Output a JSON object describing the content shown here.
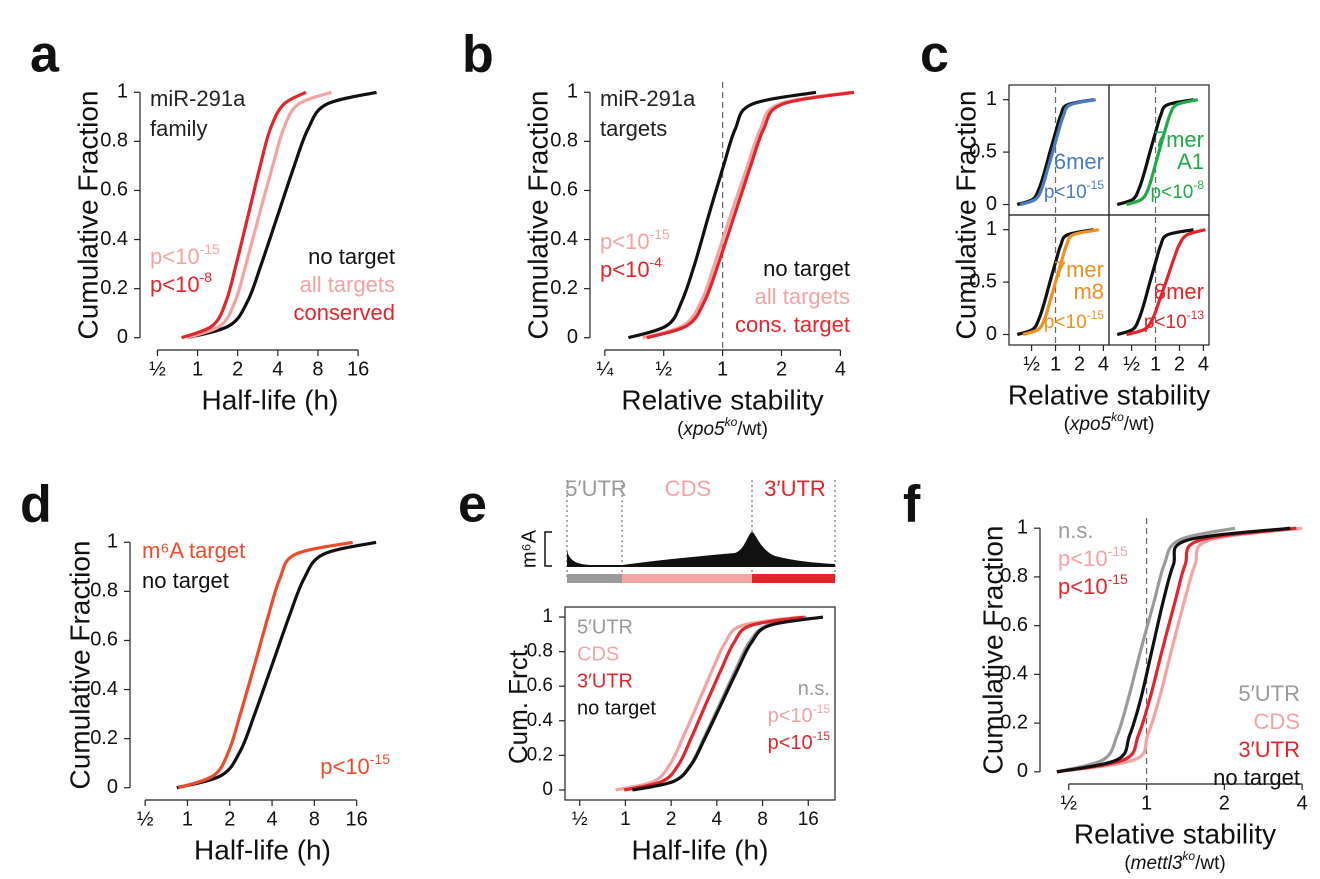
{
  "chart_data": [
    {
      "type": "line",
      "panel": "a",
      "xscale": "log",
      "ylabel": "Cumulative Fraction",
      "xlabel": "Half-life (h)",
      "inset_title": [
        "miR-291a",
        "family"
      ],
      "xlim": [
        0.37,
        33
      ],
      "ylim": [
        -0.05,
        1.05
      ],
      "xticks": [
        {
          "value": 0.5,
          "label": "½"
        },
        1,
        2,
        4,
        8,
        16
      ],
      "yticks": [
        0,
        0.2,
        0.4,
        0.6,
        0.8,
        1
      ],
      "pvalues": [
        {
          "base": "p<10",
          "exp": "-15",
          "color": "#f4a3a3"
        },
        {
          "base": "p<10",
          "exp": "-8",
          "color": "#e3242b"
        }
      ],
      "series": [
        {
          "name": "no target",
          "color": "#111111",
          "x": [
            0.84,
            1.74,
            2.38,
            3.01,
            4,
            5.31,
            6.73,
            9.19,
            22
          ],
          "values": [
            0,
            0.05,
            0.15,
            0.3,
            0.5,
            0.7,
            0.85,
            0.95,
            1
          ]
        },
        {
          "name": "all targets",
          "color": "#f4a3a3",
          "x": [
            0.84,
            1.49,
            1.92,
            2.31,
            2.9,
            3.66,
            4.41,
            5.66,
            10.1
          ],
          "values": [
            0,
            0.05,
            0.15,
            0.3,
            0.5,
            0.7,
            0.85,
            0.95,
            1
          ]
        },
        {
          "name": "conserved",
          "color": "#e3242b",
          "x": [
            0.76,
            1.3,
            1.64,
            1.95,
            2.4,
            2.95,
            3.51,
            4.41,
            6.5
          ],
          "values": [
            0,
            0.05,
            0.15,
            0.3,
            0.5,
            0.7,
            0.85,
            0.95,
            1
          ]
        }
      ]
    },
    {
      "type": "line",
      "panel": "b",
      "xscale": "log",
      "ylabel": "Cumulative Fraction",
      "xlabel": "Relative stability",
      "xlabel_note": {
        "open": "(",
        "gene": "xpo5",
        "sup": "ko",
        "close": "/wt)"
      },
      "inset_title": [
        "miR-291a",
        "targets"
      ],
      "xlim": [
        0.21,
        4.75
      ],
      "ylim": [
        -0.05,
        1.05
      ],
      "vline": 1,
      "xticks": [
        {
          "value": 0.25,
          "label": "¼"
        },
        {
          "value": 0.5,
          "label": "½"
        },
        1,
        2,
        4
      ],
      "yticks": [
        0,
        0.2,
        0.4,
        0.6,
        0.8,
        1
      ],
      "pvalues": [
        {
          "base": "p<10",
          "exp": "-15",
          "color": "#f4a3a3"
        },
        {
          "base": "p<10",
          "exp": "-4",
          "color": "#e3242b"
        }
      ],
      "series": [
        {
          "name": "no target",
          "color": "#111111",
          "x": [
            0.33,
            0.52,
            0.62,
            0.72,
            0.85,
            1.01,
            1.16,
            1.4,
            3.0
          ],
          "values": [
            0,
            0.05,
            0.15,
            0.3,
            0.5,
            0.7,
            0.85,
            0.95,
            1
          ]
        },
        {
          "name": "all targets",
          "color": "#f4a3a3",
          "x": [
            0.39,
            0.63,
            0.78,
            0.91,
            1.1,
            1.34,
            1.56,
            1.92,
            4.5
          ],
          "values": [
            0,
            0.05,
            0.15,
            0.3,
            0.5,
            0.7,
            0.85,
            0.95,
            1
          ]
        },
        {
          "name": "cons. target",
          "color": "#e3242b",
          "x": [
            0.41,
            0.66,
            0.81,
            0.95,
            1.15,
            1.39,
            1.62,
            2.0,
            4.7
          ],
          "values": [
            0,
            0.05,
            0.15,
            0.3,
            0.5,
            0.7,
            0.85,
            0.95,
            1
          ]
        }
      ]
    },
    {
      "type": "line",
      "panel": "c",
      "xscale": "log",
      "ylabel": "Cumulative Fraction",
      "xlabel": "Relative stability",
      "xlabel_note": {
        "open": "(",
        "gene": "xpo5",
        "sup": "ko",
        "close": "/wt)"
      },
      "subplots": [
        {
          "xlim": [
            0.26,
            4.7
          ],
          "ylim": [
            -0.1,
            1.14
          ],
          "vline": 1,
          "frame": true,
          "yticks": [
            0,
            0.5,
            1
          ],
          "label_lines": [
            "6mer"
          ],
          "label_color": "#4a7cc0",
          "pvalues": [
            {
              "base": "p<10",
              "exp": "-15",
              "color": "#4a7cc0"
            }
          ],
          "series": [
            {
              "color": "#111111",
              "x": [
                0.33,
                0.52,
                0.62,
                0.72,
                0.85,
                1.01,
                1.16,
                1.4,
                3.0
              ],
              "values": [
                0,
                0.05,
                0.15,
                0.3,
                0.5,
                0.7,
                0.85,
                0.95,
                1
              ]
            },
            {
              "color": "#4a7cc0",
              "x": [
                0.36,
                0.56,
                0.67,
                0.77,
                0.92,
                1.09,
                1.26,
                1.52,
                3.2
              ],
              "values": [
                0,
                0.05,
                0.15,
                0.3,
                0.5,
                0.7,
                0.85,
                0.95,
                1
              ]
            }
          ]
        },
        {
          "xlim": [
            0.26,
            4.7
          ],
          "ylim": [
            -0.1,
            1.14
          ],
          "vline": 1,
          "frame": true,
          "label_lines": [
            "7mer",
            "A1"
          ],
          "label_color": "#23a84a",
          "pvalues": [
            {
              "base": "p<10",
              "exp": "-8",
              "color": "#23a84a"
            }
          ],
          "series": [
            {
              "color": "#111111",
              "x": [
                0.33,
                0.52,
                0.62,
                0.72,
                0.85,
                1.01,
                1.16,
                1.4,
                3.0
              ],
              "values": [
                0,
                0.05,
                0.15,
                0.3,
                0.5,
                0.7,
                0.85,
                0.95,
                1
              ]
            },
            {
              "color": "#23a84a",
              "x": [
                0.43,
                0.67,
                0.81,
                0.93,
                1.1,
                1.31,
                1.51,
                1.82,
                3.4
              ],
              "values": [
                0,
                0.05,
                0.15,
                0.3,
                0.5,
                0.7,
                0.85,
                0.95,
                1
              ]
            }
          ]
        },
        {
          "xlim": [
            0.26,
            4.7
          ],
          "ylim": [
            -0.1,
            1.14
          ],
          "vline": 1,
          "frame": true,
          "yticks": [
            0,
            0.5,
            1
          ],
          "xticks": [
            {
              "value": 0.5,
              "label": "½"
            },
            1,
            2,
            4
          ],
          "label_lines": [
            "7mer",
            "m8"
          ],
          "label_color": "#f0901e",
          "pvalues": [
            {
              "base": "p<10",
              "exp": "-15",
              "color": "#f0901e"
            }
          ],
          "series": [
            {
              "color": "#111111",
              "x": [
                0.33,
                0.52,
                0.62,
                0.72,
                0.85,
                1.01,
                1.16,
                1.4,
                3.0
              ],
              "values": [
                0,
                0.05,
                0.15,
                0.3,
                0.5,
                0.7,
                0.85,
                0.95,
                1
              ]
            },
            {
              "color": "#f0901e",
              "x": [
                0.39,
                0.61,
                0.73,
                0.84,
                1,
                1.19,
                1.37,
                1.65,
                3.5
              ],
              "values": [
                0,
                0.05,
                0.15,
                0.3,
                0.5,
                0.7,
                0.85,
                0.95,
                1
              ]
            }
          ]
        },
        {
          "xlim": [
            0.26,
            4.7
          ],
          "ylim": [
            -0.1,
            1.14
          ],
          "vline": 1,
          "frame": true,
          "xticks": [
            {
              "value": 0.5,
              "label": "½"
            },
            1,
            2,
            4
          ],
          "label_lines": [
            "8mer"
          ],
          "label_color": "#e3242b",
          "pvalues": [
            {
              "base": "p<10",
              "exp": "-13",
              "color": "#e3242b"
            }
          ],
          "series": [
            {
              "color": "#111111",
              "x": [
                0.33,
                0.52,
                0.62,
                0.72,
                0.85,
                1.01,
                1.16,
                1.4,
                3.0
              ],
              "values": [
                0,
                0.05,
                0.15,
                0.3,
                0.5,
                0.7,
                0.85,
                0.95,
                1
              ]
            },
            {
              "color": "#e3242b",
              "x": [
                0.43,
                0.73,
                0.92,
                1.09,
                1.35,
                1.66,
                1.97,
                2.48,
                4.23
              ],
              "values": [
                0,
                0.05,
                0.15,
                0.3,
                0.5,
                0.7,
                0.85,
                0.95,
                1
              ]
            }
          ]
        }
      ]
    },
    {
      "type": "line",
      "panel": "d",
      "xscale": "log",
      "ylabel": "Cumulative Fraction",
      "xlabel": "Half-life (h)",
      "xlim": [
        0.39,
        30
      ],
      "ylim": [
        -0.05,
        1.05
      ],
      "xticks": [
        {
          "value": 0.5,
          "label": "½"
        },
        1,
        2,
        4,
        8,
        16
      ],
      "yticks": [
        0,
        0.2,
        0.4,
        0.6,
        0.8,
        1
      ],
      "pvalues": [
        {
          "base": "p<10",
          "exp": "-15",
          "color": "#ee4b2b"
        }
      ],
      "series": [
        {
          "name": "no target",
          "color": "#111111",
          "x": [
            0.84,
            1.74,
            2.38,
            3.01,
            4,
            5.31,
            6.73,
            9.19,
            22
          ],
          "values": [
            0,
            0.05,
            0.15,
            0.3,
            0.5,
            0.7,
            0.85,
            0.95,
            1
          ]
        },
        {
          "name": "m⁶A target",
          "color": "#ee4b2b",
          "x": [
            0.86,
            1.54,
            1.97,
            2.38,
            3,
            3.76,
            4.53,
            5.82,
            15
          ],
          "values": [
            0,
            0.05,
            0.15,
            0.3,
            0.5,
            0.7,
            0.85,
            0.95,
            1
          ]
        }
      ]
    },
    {
      "type": "line",
      "panel": "e",
      "xscale": "log",
      "ylabel": "Cum. Frct.",
      "xlabel": "Half-life (h)",
      "frame": true,
      "diagram": {
        "ylabel": "m⁶A",
        "regions": [
          {
            "label": "5′UTR",
            "color": "#9a9a9a"
          },
          {
            "label": "CDS",
            "color": "#f4a3a3"
          },
          {
            "label": "3′UTR",
            "color": "#e3242b"
          }
        ]
      },
      "xlim": [
        0.4,
        24
      ],
      "ylim": [
        -0.058,
        1.058
      ],
      "xticks": [
        {
          "value": 0.5,
          "label": "½"
        },
        1,
        2,
        4,
        8,
        16
      ],
      "yticks": [
        0,
        0.2,
        0.4,
        0.6,
        0.8,
        1
      ],
      "pvalues": [
        {
          "base": "n.s.",
          "color": "#9a9a9a"
        },
        {
          "base": "p<10",
          "exp": "-15",
          "color": "#f4a3a3"
        },
        {
          "base": "p<10",
          "exp": "-15",
          "color": "#e3242b"
        }
      ],
      "series": [
        {
          "name": "5′UTR",
          "color": "#9a9a9a",
          "x": [
            1.13,
            2.08,
            2.71,
            3.29,
            4.2,
            5.35,
            6.5,
            8.46,
            15.6
          ],
          "values": [
            0,
            0.05,
            0.15,
            0.3,
            0.5,
            0.7,
            0.85,
            0.95,
            1
          ]
        },
        {
          "name": "CDS",
          "color": "#f4a3a3",
          "x": [
            0.86,
            1.54,
            1.97,
            2.38,
            3,
            3.76,
            4.53,
            5.82,
            14
          ],
          "values": [
            0,
            0.05,
            0.15,
            0.3,
            0.5,
            0.7,
            0.85,
            0.95,
            1
          ]
        },
        {
          "name": "3′UTR",
          "color": "#e3242b",
          "x": [
            0.98,
            1.75,
            2.25,
            2.71,
            3.4,
            4.29,
            5.17,
            6.63,
            15
          ],
          "values": [
            0,
            0.05,
            0.15,
            0.3,
            0.5,
            0.7,
            0.85,
            0.95,
            1
          ]
        },
        {
          "name": "no target",
          "color": "#111111",
          "x": [
            1.11,
            2.08,
            2.73,
            3.34,
            4.29,
            5.5,
            6.73,
            8.82,
            20
          ],
          "values": [
            0,
            0.05,
            0.15,
            0.3,
            0.5,
            0.7,
            0.85,
            0.95,
            1
          ]
        }
      ]
    },
    {
      "type": "line",
      "panel": "f",
      "xscale": "log",
      "ylabel": "Cumulative Fraction",
      "xlabel": "Relative stability",
      "xlabel_note": {
        "open": "(",
        "gene": "mettl3",
        "sup": "ko",
        "close": "/wt)"
      },
      "xlim": [
        0.387,
        4.29
      ],
      "ylim": [
        -0.05,
        1.05
      ],
      "vline": 1,
      "xticks": [
        {
          "value": 0.5,
          "label": "½"
        },
        1,
        2,
        4
      ],
      "yticks": [
        0,
        0.2,
        0.4,
        0.6,
        0.8,
        1
      ],
      "pvalues": [
        {
          "base": "n.s.",
          "color": "#9a9a9a"
        },
        {
          "base": "p<10",
          "exp": "-15",
          "color": "#f4a3a3"
        },
        {
          "base": "p<10",
          "exp": "-15",
          "color": "#e3242b"
        }
      ],
      "series": [
        {
          "name": "5′UTR",
          "color": "#9a9a9a",
          "x": [
            0.45,
            0.68,
            0.77,
            0.85,
            0.95,
            1.07,
            1.17,
            1.33,
            2.2
          ],
          "values": [
            0,
            0.05,
            0.15,
            0.3,
            0.5,
            0.7,
            0.85,
            0.95,
            1
          ]
        },
        {
          "name": "CDS",
          "color": "#f4a3a3",
          "x": [
            0.45,
            0.9,
            1.01,
            1.12,
            1.25,
            1.4,
            1.54,
            1.74,
            4.0
          ],
          "values": [
            0,
            0.05,
            0.15,
            0.3,
            0.5,
            0.7,
            0.85,
            0.95,
            1
          ]
        },
        {
          "name": "3′UTR",
          "color": "#e3242b",
          "x": [
            0.45,
            0.82,
            0.93,
            1.03,
            1.15,
            1.29,
            1.41,
            1.6,
            3.8
          ],
          "values": [
            0,
            0.05,
            0.15,
            0.3,
            0.5,
            0.7,
            0.85,
            0.95,
            1
          ]
        },
        {
          "name": "no target",
          "color": "#111111",
          "x": [
            0.45,
            0.77,
            0.86,
            0.95,
            1.05,
            1.16,
            1.27,
            1.43,
            3.6
          ],
          "values": [
            0,
            0.05,
            0.15,
            0.3,
            0.5,
            0.7,
            0.85,
            0.95,
            1
          ]
        }
      ]
    }
  ]
}
